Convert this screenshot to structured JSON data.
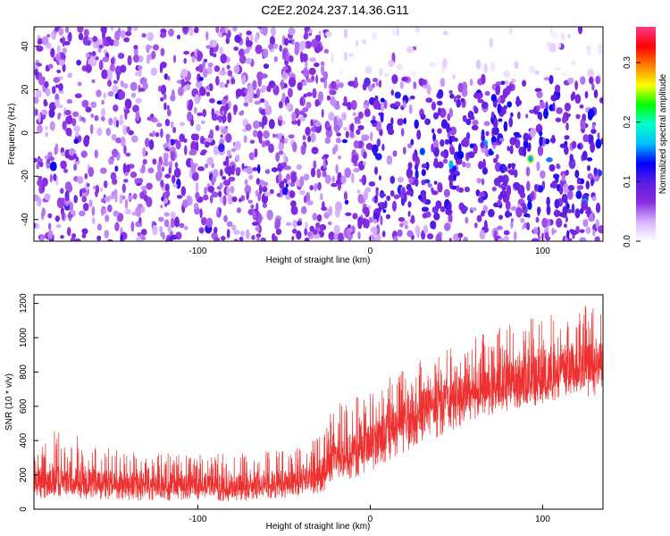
{
  "figure": {
    "title": "C2E2.2024.237.14.36.G11"
  },
  "chart_data": [
    {
      "type": "heatmap",
      "title": "C2E2.2024.237.14.36.G11",
      "xlabel": "Height of straight line (km)",
      "ylabel": "Frequency (Hz)",
      "xlim": [
        -195,
        135
      ],
      "ylim": [
        -50,
        49
      ],
      "xticks": [
        -100,
        0,
        100
      ],
      "yticks": [
        -40,
        -20,
        0,
        20,
        40
      ],
      "colorbar": {
        "label": "Normalized spectral amplitude",
        "range": [
          0.0,
          0.36
        ],
        "ticks": [
          "0.0",
          "0.1",
          "0.2",
          "0.3"
        ],
        "colormap": [
          "#ffffff",
          "#d8b4ff",
          "#8a2be2",
          "#5a1ee0",
          "#0000ff",
          "#00bfff",
          "#00ffcc",
          "#00ff00",
          "#ffff00",
          "#ff8000",
          "#ff0000",
          "#ff3a8c"
        ]
      },
      "features": [
        {
          "x_from": -195,
          "x_to": 135,
          "freq_from": -50,
          "freq_to": 49,
          "level": "dense noise, amplitude mostly 0.03-0.08"
        },
        {
          "x_from": -25,
          "x_to": 135,
          "freq_from": 25,
          "freq_to": 49,
          "level": "sparse / near zero"
        },
        {
          "x_from": 0,
          "x_to": 135,
          "freq_from": -40,
          "freq_to": 20,
          "level": "stronger band, peaks about 0.12"
        },
        {
          "x": 93,
          "freq": -12,
          "level": "peak about 0.25"
        }
      ]
    },
    {
      "type": "line",
      "xlabel": "Height of straight line (km)",
      "ylabel": "SNR (10 * v/v)",
      "xlim": [
        -195,
        135
      ],
      "ylim": [
        0,
        1250
      ],
      "xticks": [
        -100,
        0,
        100
      ],
      "yticks": [
        0,
        200,
        400,
        600,
        800,
        1000,
        1200
      ],
      "color": "#ee3030",
      "x": [
        -195,
        -180,
        -160,
        -140,
        -120,
        -100,
        -80,
        -60,
        -40,
        -30,
        -20,
        -10,
        0,
        10,
        20,
        30,
        40,
        50,
        60,
        70,
        80,
        90,
        100,
        110,
        120,
        135
      ],
      "y_low": [
        60,
        70,
        55,
        50,
        45,
        50,
        45,
        55,
        70,
        90,
        140,
        180,
        220,
        280,
        330,
        400,
        420,
        470,
        520,
        540,
        570,
        590,
        610,
        640,
        650,
        660
      ],
      "y_mean": [
        160,
        175,
        160,
        150,
        145,
        145,
        140,
        150,
        170,
        210,
        300,
        340,
        380,
        460,
        530,
        590,
        620,
        660,
        700,
        720,
        750,
        770,
        790,
        810,
        830,
        850
      ],
      "y_high": [
        370,
        480,
        380,
        340,
        330,
        320,
        330,
        340,
        360,
        420,
        620,
        640,
        700,
        760,
        820,
        880,
        920,
        960,
        1000,
        1050,
        1080,
        1120,
        1150,
        1170,
        1190,
        1220
      ]
    }
  ]
}
